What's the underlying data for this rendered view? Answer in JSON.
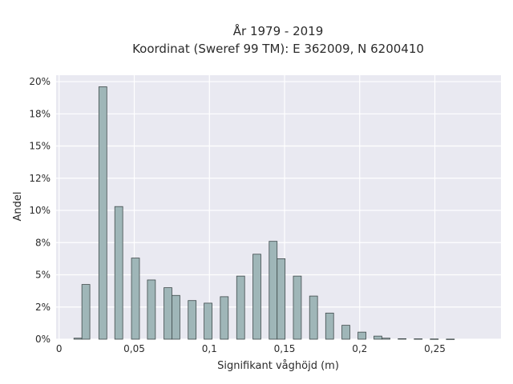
{
  "chart_data": {
    "type": "bar",
    "title_lines": [
      "År 1979 - 2019",
      "Koordinat (Sweref 99 TM): E 362009, N 6200410"
    ],
    "xlabel": "Signifikant våghöjd (m)",
    "ylabel": "Andel",
    "xlim": [
      -0.002,
      0.294
    ],
    "ylim": [
      0,
      0.205
    ],
    "x_ticks": [
      {
        "value": 0,
        "label": "0"
      },
      {
        "value": 0.05,
        "label": "0,05"
      },
      {
        "value": 0.1,
        "label": "0,1"
      },
      {
        "value": 0.15,
        "label": "0,15"
      },
      {
        "value": 0.2,
        "label": "0,2"
      },
      {
        "value": 0.25,
        "label": "0,25"
      }
    ],
    "y_ticks": [
      {
        "value": 0,
        "label": "0%"
      },
      {
        "value": 0.025,
        "label": "2%"
      },
      {
        "value": 0.05,
        "label": "5%"
      },
      {
        "value": 0.075,
        "label": "8%"
      },
      {
        "value": 0.1,
        "label": "10%"
      },
      {
        "value": 0.125,
        "label": "12%"
      },
      {
        "value": 0.15,
        "label": "15%"
      },
      {
        "value": 0.175,
        "label": "18%"
      },
      {
        "value": 0.2,
        "label": "20%"
      }
    ],
    "bar_width": 0.0053,
    "bars": [
      {
        "x": 0.0125,
        "y": 0.0008
      },
      {
        "x": 0.0178,
        "y": 0.0425
      },
      {
        "x": 0.0291,
        "y": 0.196
      },
      {
        "x": 0.0397,
        "y": 0.103
      },
      {
        "x": 0.0508,
        "y": 0.063
      },
      {
        "x": 0.0614,
        "y": 0.046
      },
      {
        "x": 0.0724,
        "y": 0.04
      },
      {
        "x": 0.0777,
        "y": 0.034
      },
      {
        "x": 0.0885,
        "y": 0.03
      },
      {
        "x": 0.0991,
        "y": 0.028
      },
      {
        "x": 0.1099,
        "y": 0.033
      },
      {
        "x": 0.1208,
        "y": 0.049
      },
      {
        "x": 0.1316,
        "y": 0.066
      },
      {
        "x": 0.1424,
        "y": 0.076
      },
      {
        "x": 0.1477,
        "y": 0.0625
      },
      {
        "x": 0.1585,
        "y": 0.049
      },
      {
        "x": 0.1693,
        "y": 0.0335
      },
      {
        "x": 0.18,
        "y": 0.0203
      },
      {
        "x": 0.1908,
        "y": 0.0108
      },
      {
        "x": 0.2015,
        "y": 0.0055
      },
      {
        "x": 0.2121,
        "y": 0.0024
      },
      {
        "x": 0.2175,
        "y": 0.0008
      },
      {
        "x": 0.2282,
        "y": 0.0004
      },
      {
        "x": 0.2389,
        "y": 0.0003
      },
      {
        "x": 0.2496,
        "y": 0.0002
      },
      {
        "x": 0.2603,
        "y": 0.0001
      }
    ],
    "grid": true,
    "legend": "none",
    "colors": {
      "bar_fill": "#9fb6b8",
      "bar_edge": "#3f4a4b",
      "plot_bg": "#e9e9f1",
      "grid": "#ffffff"
    }
  }
}
